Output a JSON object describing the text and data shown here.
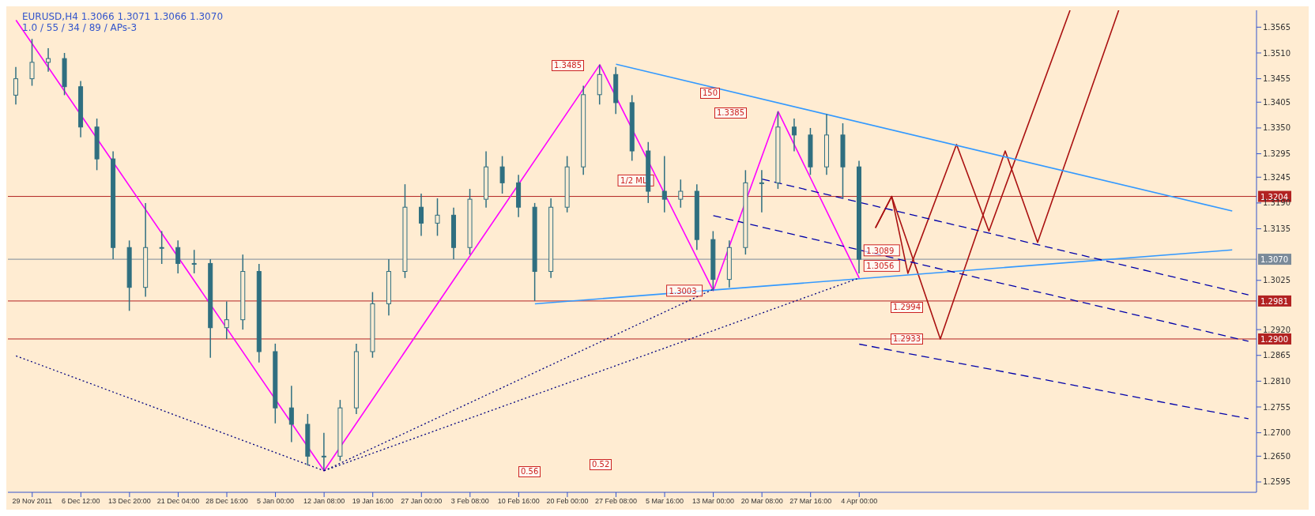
{
  "chart_data": {
    "type": "candlestick",
    "title": "EURUSD,H4  1.3066 1.3071 1.3066 1.3070",
    "subtitle": "1.0 / 55 / 34 / 89 / APs-3",
    "color": "#2f6f80",
    "categories": [
      null,
      "29 Nov 2011",
      null,
      null,
      "6 Dec 12:00",
      null,
      null,
      "13 Dec 20:00",
      null,
      null,
      "21 Dec 04:00",
      null,
      null,
      "28 Dec 16:00",
      null,
      null,
      "5 Jan 00:00",
      null,
      null,
      "12 Jan 08:00",
      null,
      null,
      "19 Jan 16:00",
      null,
      null,
      "27 Jan 00:00",
      null,
      null,
      "3 Feb 08:00",
      null,
      null,
      "10 Feb 16:00",
      null,
      null,
      "20 Feb 00:00",
      null,
      null,
      "27 Feb 08:00",
      null,
      null,
      "5 Mar 16:00",
      null,
      null,
      "13 Mar 00:00",
      null,
      null,
      "20 Mar 08:00",
      null,
      null,
      "27 Mar 16:00",
      null,
      null,
      "4 Apr 00:00",
      null,
      null,
      null,
      null,
      null,
      null,
      null,
      null,
      null,
      null,
      null,
      null,
      null,
      null,
      null,
      null,
      null,
      null,
      null,
      null,
      null,
      null,
      null,
      null
    ],
    "ohlc": [
      [
        1.342,
        1.348,
        1.34,
        1.3455
      ],
      [
        1.3455,
        1.354,
        1.344,
        1.349
      ],
      [
        1.349,
        1.352,
        1.347,
        1.3498
      ],
      [
        1.3498,
        1.351,
        1.342,
        1.3438
      ],
      [
        1.3438,
        1.345,
        1.333,
        1.3352
      ],
      [
        1.3352,
        1.337,
        1.326,
        1.3284
      ],
      [
        1.3284,
        1.33,
        1.307,
        1.3095
      ],
      [
        1.3095,
        1.311,
        1.296,
        1.301
      ],
      [
        1.301,
        1.319,
        1.299,
        1.3095
      ],
      [
        1.3095,
        1.313,
        1.306,
        1.3095
      ],
      [
        1.3095,
        1.311,
        1.304,
        1.3061
      ],
      [
        1.3061,
        1.309,
        1.304,
        1.3061
      ],
      [
        1.3061,
        1.307,
        1.286,
        1.2924
      ],
      [
        1.2924,
        1.298,
        1.29,
        1.2941
      ],
      [
        1.2941,
        1.308,
        1.292,
        1.3044
      ],
      [
        1.3044,
        1.306,
        1.285,
        1.2873
      ],
      [
        1.2873,
        1.289,
        1.272,
        1.2753
      ],
      [
        1.2753,
        1.28,
        1.268,
        1.2718
      ],
      [
        1.2718,
        1.274,
        1.263,
        1.265
      ],
      [
        1.265,
        1.27,
        1.262,
        1.265
      ],
      [
        1.265,
        1.277,
        1.264,
        1.2753
      ],
      [
        1.2753,
        1.289,
        1.274,
        1.2873
      ],
      [
        1.2873,
        1.3,
        1.286,
        1.2975
      ],
      [
        1.2975,
        1.307,
        1.295,
        1.3044
      ],
      [
        1.3044,
        1.323,
        1.303,
        1.3181
      ],
      [
        1.3181,
        1.321,
        1.312,
        1.3147
      ],
      [
        1.3147,
        1.32,
        1.312,
        1.3164
      ],
      [
        1.3164,
        1.318,
        1.307,
        1.3095
      ],
      [
        1.3095,
        1.322,
        1.308,
        1.3198
      ],
      [
        1.3198,
        1.33,
        1.318,
        1.3267
      ],
      [
        1.3267,
        1.329,
        1.321,
        1.3233
      ],
      [
        1.3233,
        1.325,
        1.316,
        1.3181
      ],
      [
        1.3181,
        1.319,
        1.2981,
        1.3044
      ],
      [
        1.3044,
        1.32,
        1.303,
        1.3181
      ],
      [
        1.3181,
        1.329,
        1.317,
        1.3267
      ],
      [
        1.3267,
        1.344,
        1.325,
        1.3421
      ],
      [
        1.3421,
        1.3485,
        1.34,
        1.3464
      ],
      [
        1.3464,
        1.348,
        1.338,
        1.3404
      ],
      [
        1.3404,
        1.342,
        1.328,
        1.3301
      ],
      [
        1.3301,
        1.332,
        1.319,
        1.3215
      ],
      [
        1.3215,
        1.329,
        1.317,
        1.3198
      ],
      [
        1.3198,
        1.324,
        1.318,
        1.3215
      ],
      [
        1.3215,
        1.323,
        1.309,
        1.3112
      ],
      [
        1.3112,
        1.313,
        1.3003,
        1.3027
      ],
      [
        1.3027,
        1.311,
        1.301,
        1.3095
      ],
      [
        1.3095,
        1.326,
        1.308,
        1.3233
      ],
      [
        1.3233,
        1.326,
        1.317,
        1.3233
      ],
      [
        1.3233,
        1.3385,
        1.322,
        1.3352
      ],
      [
        1.3352,
        1.337,
        1.33,
        1.3335
      ],
      [
        1.3335,
        1.335,
        1.325,
        1.3267
      ],
      [
        1.3267,
        1.338,
        1.325,
        1.3335
      ],
      [
        1.3335,
        1.336,
        1.32,
        1.3267
      ],
      [
        1.3267,
        1.328,
        1.304,
        1.307
      ],
      null,
      null,
      null,
      null,
      null,
      null,
      null,
      null,
      null,
      null,
      null,
      null,
      null,
      null,
      null,
      null,
      null,
      null,
      null,
      null,
      null,
      null,
      null,
      null
    ],
    "series": [
      {
        "type": "line",
        "color": "#ff00ff",
        "line_style": "solid",
        "values": [
          1.358,
          null,
          null,
          null,
          null,
          null,
          null,
          null,
          null,
          null,
          null,
          null,
          null,
          null,
          null,
          null,
          null,
          null,
          null,
          1.2619,
          null,
          null,
          null,
          null,
          null,
          null,
          null,
          null,
          null,
          null,
          null,
          null,
          null,
          null,
          null,
          null,
          1.3485,
          null,
          null,
          null,
          null,
          null,
          null,
          1.3003,
          null,
          null,
          null,
          1.3385,
          null,
          null,
          null,
          null,
          1.303,
          null,
          null,
          null,
          null,
          null,
          null,
          null,
          null,
          null,
          null,
          null,
          null,
          null,
          null,
          null,
          null,
          null,
          null,
          null,
          null,
          null,
          null,
          null,
          null
        ]
      },
      {
        "type": "line",
        "color": "#aa1111",
        "line_style": "solid",
        "values": [
          null,
          null,
          null,
          null,
          null,
          null,
          null,
          null,
          null,
          null,
          null,
          null,
          null,
          null,
          null,
          null,
          null,
          null,
          null,
          null,
          null,
          null,
          null,
          null,
          null,
          null,
          null,
          null,
          null,
          null,
          null,
          null,
          null,
          null,
          null,
          null,
          null,
          null,
          null,
          null,
          null,
          null,
          null,
          null,
          null,
          null,
          null,
          null,
          null,
          null,
          null,
          null,
          null,
          1.3137,
          1.3204,
          1.304,
          null,
          null,
          1.3315,
          null,
          1.313,
          null,
          null,
          null,
          null,
          1.3601,
          null,
          null,
          null,
          null,
          null,
          null,
          null,
          null,
          null,
          null,
          null
        ]
      },
      {
        "type": "line",
        "color": "#aa1111",
        "line_style": "solid",
        "values": [
          null,
          null,
          null,
          null,
          null,
          null,
          null,
          null,
          null,
          null,
          null,
          null,
          null,
          null,
          null,
          null,
          null,
          null,
          null,
          null,
          null,
          null,
          null,
          null,
          null,
          null,
          null,
          null,
          null,
          null,
          null,
          null,
          null,
          null,
          null,
          null,
          null,
          null,
          null,
          null,
          null,
          null,
          null,
          null,
          null,
          null,
          null,
          null,
          null,
          null,
          null,
          null,
          null,
          1.3137,
          1.3204,
          null,
          null,
          1.29,
          null,
          null,
          null,
          1.3301,
          null,
          1.3106,
          null,
          null,
          null,
          null,
          1.3601,
          null,
          null,
          null,
          null,
          null,
          null,
          null,
          null
        ]
      },
      {
        "type": "line",
        "color": "#3399ff",
        "line_style": "solid",
        "values": [
          null,
          null,
          null,
          null,
          null,
          null,
          null,
          null,
          null,
          null,
          null,
          null,
          null,
          null,
          null,
          null,
          null,
          null,
          null,
          null,
          null,
          null,
          null,
          null,
          null,
          null,
          null,
          null,
          null,
          null,
          null,
          null,
          null,
          null,
          null,
          null,
          null,
          1.3486,
          null,
          null,
          null,
          null,
          null,
          null,
          null,
          null,
          null,
          null,
          null,
          null,
          null,
          null,
          null,
          null,
          null,
          null,
          null,
          null,
          null,
          null,
          null,
          null,
          null,
          null,
          null,
          null,
          null,
          null,
          null,
          null,
          null,
          null,
          null,
          null,
          null,
          1.3173,
          null
        ]
      },
      {
        "type": "line",
        "color": "#3399ff",
        "line_style": "solid",
        "values": [
          null,
          null,
          null,
          null,
          null,
          null,
          null,
          null,
          null,
          null,
          null,
          null,
          null,
          null,
          null,
          null,
          null,
          null,
          null,
          null,
          null,
          null,
          null,
          null,
          null,
          null,
          null,
          null,
          null,
          null,
          null,
          null,
          1.2975,
          null,
          null,
          null,
          null,
          null,
          null,
          null,
          null,
          null,
          null,
          null,
          null,
          null,
          null,
          null,
          null,
          null,
          null,
          null,
          null,
          null,
          null,
          null,
          null,
          null,
          null,
          null,
          null,
          null,
          null,
          null,
          null,
          null,
          null,
          null,
          null,
          null,
          null,
          null,
          null,
          null,
          null,
          1.309,
          null
        ]
      },
      {
        "type": "line",
        "color": "#0000aa",
        "line_style": "dashed",
        "values": [
          null,
          null,
          null,
          null,
          null,
          null,
          null,
          null,
          null,
          null,
          null,
          null,
          null,
          null,
          null,
          null,
          null,
          null,
          null,
          null,
          null,
          null,
          null,
          null,
          null,
          null,
          null,
          null,
          null,
          null,
          null,
          null,
          null,
          null,
          null,
          null,
          null,
          null,
          null,
          null,
          null,
          null,
          null,
          null,
          null,
          null,
          1.3241,
          null,
          null,
          null,
          null,
          null,
          null,
          null,
          null,
          null,
          null,
          null,
          null,
          null,
          null,
          null,
          null,
          null,
          null,
          null,
          null,
          null,
          null,
          null,
          null,
          null,
          null,
          null,
          null,
          null,
          1.2994
        ]
      },
      {
        "type": "line",
        "color": "#0000aa",
        "line_style": "dashed",
        "values": [
          null,
          null,
          null,
          null,
          null,
          null,
          null,
          null,
          null,
          null,
          null,
          null,
          null,
          null,
          null,
          null,
          null,
          null,
          null,
          null,
          null,
          null,
          null,
          null,
          null,
          null,
          null,
          null,
          null,
          null,
          null,
          null,
          null,
          null,
          null,
          null,
          null,
          null,
          null,
          null,
          null,
          null,
          null,
          1.3163,
          null,
          null,
          null,
          null,
          null,
          null,
          null,
          null,
          null,
          null,
          null,
          null,
          null,
          null,
          null,
          null,
          null,
          null,
          null,
          null,
          null,
          null,
          null,
          null,
          null,
          null,
          null,
          null,
          null,
          null,
          null,
          null,
          1.2895
        ]
      },
      {
        "type": "line",
        "color": "#0000aa",
        "line_style": "dashed",
        "values": [
          null,
          null,
          null,
          null,
          null,
          null,
          null,
          null,
          null,
          null,
          null,
          null,
          null,
          null,
          null,
          null,
          null,
          null,
          null,
          null,
          null,
          null,
          null,
          null,
          null,
          null,
          null,
          null,
          null,
          null,
          null,
          null,
          null,
          null,
          null,
          null,
          null,
          null,
          null,
          null,
          null,
          null,
          null,
          null,
          null,
          null,
          null,
          null,
          null,
          null,
          null,
          null,
          1.2889,
          null,
          null,
          null,
          null,
          null,
          null,
          null,
          null,
          null,
          null,
          null,
          null,
          null,
          null,
          null,
          null,
          null,
          null,
          null,
          null,
          null,
          null,
          null,
          1.273
        ]
      },
      {
        "type": "line",
        "color": "#000080",
        "line_style": "dotted",
        "values": [
          1.2864,
          null,
          null,
          null,
          null,
          null,
          null,
          null,
          null,
          null,
          null,
          null,
          null,
          null,
          null,
          null,
          null,
          null,
          null,
          1.2619,
          null,
          null,
          null,
          null,
          null,
          null,
          null,
          null,
          null,
          null,
          null,
          null,
          null,
          null,
          null,
          null,
          null,
          null,
          null,
          null,
          null,
          null,
          null,
          null,
          null,
          null,
          null,
          null,
          null,
          null,
          null,
          null,
          null,
          null,
          null,
          null,
          null,
          null,
          null,
          null,
          null,
          null,
          null,
          null,
          null,
          null,
          null,
          null,
          null,
          null,
          null,
          null,
          null,
          null,
          null,
          null,
          null
        ]
      },
      {
        "type": "line",
        "color": "#000080",
        "line_style": "dotted",
        "values": [
          null,
          null,
          null,
          null,
          null,
          null,
          null,
          null,
          null,
          null,
          null,
          null,
          null,
          null,
          null,
          null,
          null,
          null,
          null,
          1.2619,
          null,
          null,
          null,
          null,
          null,
          null,
          null,
          null,
          null,
          null,
          null,
          null,
          null,
          null,
          null,
          null,
          null,
          null,
          null,
          null,
          null,
          null,
          null,
          1.3006,
          null,
          null,
          null,
          null,
          null,
          null,
          null,
          null,
          null,
          null,
          null,
          null,
          null,
          null,
          null,
          null,
          null,
          null,
          null,
          null,
          null,
          null,
          null,
          null,
          null,
          null,
          null,
          null,
          null,
          null,
          null,
          null,
          null
        ]
      },
      {
        "type": "line",
        "color": "#000080",
        "line_style": "dotted",
        "values": [
          null,
          null,
          null,
          null,
          null,
          null,
          null,
          null,
          null,
          null,
          null,
          null,
          null,
          null,
          null,
          null,
          null,
          null,
          null,
          1.2619,
          null,
          null,
          null,
          null,
          null,
          null,
          null,
          null,
          null,
          null,
          null,
          null,
          null,
          null,
          null,
          null,
          null,
          null,
          null,
          null,
          null,
          null,
          null,
          null,
          null,
          null,
          null,
          null,
          null,
          null,
          null,
          null,
          1.303,
          null,
          null,
          null,
          null,
          null,
          null,
          null,
          null,
          null,
          null,
          null,
          null,
          null,
          null,
          null,
          null,
          null,
          null,
          null,
          null,
          null,
          null,
          null,
          null
        ]
      }
    ],
    "ylim": [
      1.2573,
      1.3601
    ],
    "yticks": [
      1.3565,
      {
        "value": 1.351,
        "label": "1.3510"
      },
      1.3455,
      1.3405,
      {
        "value": 1.335,
        "label": "1.3350"
      },
      1.3295,
      1.3245,
      {
        "value": 1.319,
        "label": "1.3190"
      },
      1.3135,
      1.3025,
      {
        "value": 1.292,
        "label": "1.2920"
      },
      1.2865,
      {
        "value": 1.281,
        "label": "1.2810"
      },
      1.2755,
      {
        "value": 1.27,
        "label": "1.2700"
      },
      {
        "value": 1.265,
        "label": "1.2650"
      },
      1.2595
    ],
    "ref_lines": [
      {
        "axis": "y",
        "value": 1.3204,
        "label": "1.3204",
        "color": "#b22222"
      },
      {
        "axis": "y",
        "value": 1.2981,
        "label": "1.2981",
        "color": "#b22222"
      },
      {
        "axis": "y",
        "value": 1.29,
        "label": "1.2900",
        "color": "#b22222"
      },
      {
        "axis": "y",
        "value": 1.307,
        "label": "1.3070",
        "color": "#7a8a99"
      }
    ],
    "annotations": [
      "1.3485",
      "1.3385",
      {
        "text": "1.3003",
        "x": "13 Mar 00:00",
        "y": 1.3003
      },
      {
        "text": "1.3089",
        "x": "4 Apr 00:00",
        "y": 1.3089
      },
      {
        "text": "1.3056",
        "x": "4 Apr 00:00",
        "y": 1.3056
      },
      "1.2994",
      "1.2933",
      "0.56",
      "0.52",
      "150",
      {
        "text": "1/2 ML",
        "x": "5 Mar 16:00",
        "y": 1.3238
      }
    ],
    "grid": false,
    "legend": false,
    "marker": "none"
  }
}
